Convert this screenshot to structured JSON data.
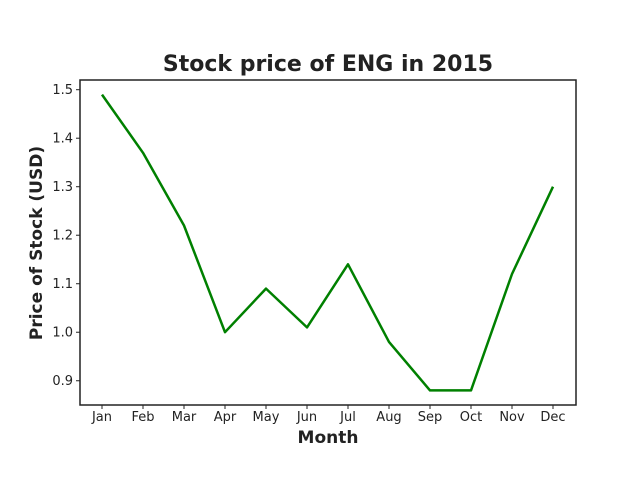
{
  "chart_data": {
    "type": "line",
    "title": "Stock price of ENG in 2015",
    "xlabel": "Month",
    "ylabel": "Price of Stock (USD)",
    "categories": [
      "Jan",
      "Feb",
      "Mar",
      "Apr",
      "May",
      "Jun",
      "Jul",
      "Aug",
      "Sep",
      "Oct",
      "Nov",
      "Dec"
    ],
    "series": [
      {
        "values": [
          1.49,
          1.37,
          1.22,
          1.0,
          1.09,
          1.01,
          1.14,
          0.98,
          0.88,
          0.88,
          1.12,
          1.3
        ],
        "color": "#008000"
      }
    ],
    "ylim": [
      0.85,
      1.52
    ],
    "yticks": [
      "0.9",
      "1.0",
      "1.1",
      "1.2",
      "1.3",
      "1.4",
      "1.5"
    ],
    "grid": false
  }
}
